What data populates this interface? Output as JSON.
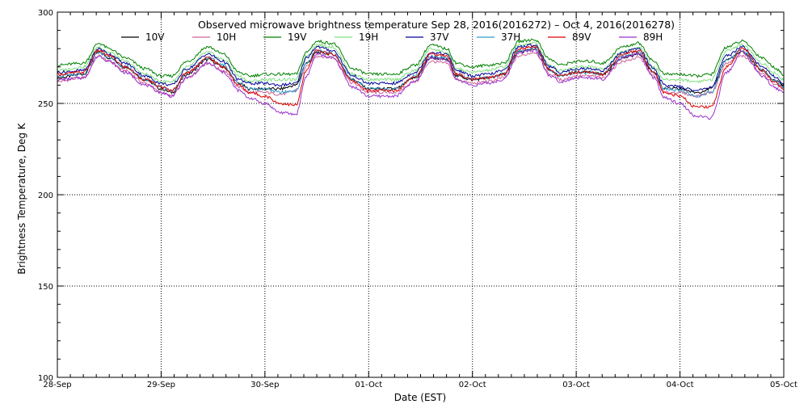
{
  "chart_data": {
    "type": "line",
    "title": "Observed microwave brightness temperature Sep 28, 2016(2016272) – Oct  4, 2016(2016278)",
    "xlabel": "Date (EST)",
    "ylabel": "Brightness Temperature, Deg K",
    "xlim": [
      0,
      7
    ],
    "ylim": [
      100,
      300
    ],
    "x_ticks": [
      {
        "x": 0,
        "label": "28-Sep"
      },
      {
        "x": 1,
        "label": "29-Sep"
      },
      {
        "x": 2,
        "label": "30-Sep"
      },
      {
        "x": 3,
        "label": "01-Oct"
      },
      {
        "x": 4,
        "label": "02-Oct"
      },
      {
        "x": 5,
        "label": "03-Oct"
      },
      {
        "x": 6,
        "label": "04-Oct"
      },
      {
        "x": 7,
        "label": "05-Oct"
      }
    ],
    "y_ticks": [
      100,
      150,
      200,
      250,
      300
    ],
    "grid": "dotted",
    "legend_position": "top",
    "x": [
      0,
      0.25,
      0.4,
      0.5,
      0.65,
      0.85,
      1.0,
      1.1,
      1.25,
      1.45,
      1.6,
      1.75,
      1.85,
      2.0,
      2.15,
      2.3,
      2.4,
      2.5,
      2.65,
      2.85,
      3.0,
      3.1,
      3.25,
      3.45,
      3.6,
      3.75,
      3.85,
      4.0,
      4.15,
      4.3,
      4.45,
      4.6,
      4.75,
      4.85,
      5.0,
      5.15,
      5.25,
      5.45,
      5.6,
      5.75,
      5.85,
      6.0,
      6.15,
      6.3,
      6.45,
      6.6,
      6.8,
      6.9,
      7.0
    ],
    "series": [
      {
        "name": "10V",
        "color": "#000000",
        "values": [
          264,
          266,
          278,
          275,
          270,
          263,
          258,
          256,
          266,
          274,
          270,
          261,
          258,
          258,
          258,
          260,
          272,
          278,
          277,
          263,
          258,
          258,
          258,
          264,
          275,
          274,
          265,
          263,
          264,
          266,
          278,
          280,
          268,
          265,
          267,
          267,
          266,
          275,
          277,
          267,
          258,
          258,
          256,
          258,
          274,
          278,
          268,
          263,
          260
        ]
      },
      {
        "name": "10H",
        "color": "#cc6699",
        "values": [
          262,
          264,
          276,
          273,
          268,
          261,
          256,
          254,
          264,
          272,
          268,
          259,
          256,
          256,
          255,
          257,
          270,
          276,
          275,
          261,
          256,
          256,
          256,
          262,
          273,
          272,
          263,
          261,
          262,
          264,
          276,
          278,
          266,
          263,
          265,
          265,
          264,
          273,
          275,
          265,
          256,
          256,
          254,
          256,
          272,
          276,
          266,
          261,
          258
        ]
      },
      {
        "name": "19V",
        "color": "#008000",
        "values": [
          271,
          272,
          283,
          280,
          275,
          269,
          265,
          265,
          273,
          281,
          277,
          267,
          265,
          266,
          266,
          266,
          278,
          284,
          283,
          269,
          266,
          266,
          266,
          271,
          282,
          280,
          272,
          270,
          271,
          272,
          284,
          285,
          274,
          271,
          273,
          273,
          272,
          281,
          283,
          273,
          266,
          266,
          265,
          266,
          281,
          284,
          275,
          270,
          266
        ]
      },
      {
        "name": "19H",
        "color": "#80e080",
        "values": [
          268,
          270,
          281,
          278,
          273,
          266,
          262,
          262,
          270,
          278,
          274,
          265,
          262,
          263,
          263,
          263,
          276,
          282,
          281,
          266,
          263,
          263,
          263,
          268,
          280,
          278,
          269,
          267,
          268,
          270,
          282,
          283,
          271,
          268,
          270,
          270,
          269,
          278,
          281,
          270,
          263,
          263,
          262,
          263,
          279,
          282,
          272,
          267,
          263
        ]
      },
      {
        "name": "37V",
        "color": "#000099",
        "values": [
          267,
          268,
          280,
          277,
          272,
          265,
          261,
          260,
          269,
          277,
          273,
          263,
          261,
          261,
          260,
          261,
          275,
          281,
          279,
          265,
          261,
          261,
          261,
          267,
          278,
          277,
          268,
          265,
          266,
          268,
          281,
          282,
          270,
          267,
          269,
          269,
          268,
          278,
          280,
          269,
          260,
          259,
          257,
          259,
          276,
          281,
          270,
          265,
          261
        ]
      },
      {
        "name": "37H",
        "color": "#3399cc",
        "values": [
          265,
          266,
          278,
          275,
          270,
          263,
          259,
          257,
          267,
          275,
          271,
          261,
          258,
          258,
          256,
          257,
          272,
          279,
          277,
          263,
          258,
          258,
          258,
          265,
          276,
          275,
          266,
          263,
          264,
          266,
          279,
          280,
          268,
          265,
          267,
          267,
          266,
          276,
          278,
          267,
          258,
          257,
          254,
          256,
          274,
          279,
          268,
          263,
          259
        ]
      },
      {
        "name": "89V",
        "color": "#dd0000",
        "values": [
          266,
          267,
          279,
          276,
          270,
          263,
          259,
          257,
          267,
          275,
          270,
          260,
          256,
          254,
          250,
          249,
          268,
          279,
          277,
          262,
          257,
          257,
          257,
          265,
          277,
          276,
          266,
          263,
          264,
          266,
          280,
          281,
          268,
          265,
          267,
          267,
          266,
          277,
          279,
          267,
          256,
          254,
          248,
          248,
          270,
          280,
          268,
          262,
          258
        ]
      },
      {
        "name": "89H",
        "color": "#9933cc",
        "values": [
          263,
          264,
          276,
          273,
          267,
          260,
          256,
          254,
          264,
          272,
          267,
          257,
          253,
          250,
          245,
          244,
          265,
          277,
          275,
          259,
          254,
          254,
          254,
          262,
          275,
          274,
          263,
          260,
          261,
          263,
          278,
          279,
          265,
          262,
          264,
          264,
          263,
          275,
          277,
          264,
          253,
          250,
          243,
          242,
          267,
          278,
          265,
          259,
          256
        ]
      }
    ]
  }
}
